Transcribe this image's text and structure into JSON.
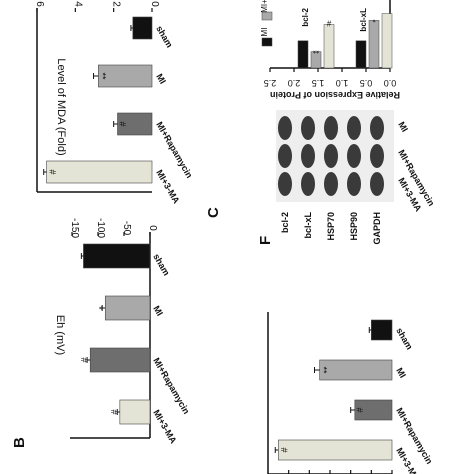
{
  "colors": {
    "sham": "#111111",
    "MI": "#a9a9a9",
    "MI+Rapamycin": "#6e6e6e",
    "MI+3-MA": "#e3e3d6",
    "axis": "#111111"
  },
  "chart_data": [
    {
      "panel": "B",
      "type": "bar",
      "ylabel": "Eh (mV)",
      "ylim": [
        -150,
        0
      ],
      "yticks": [
        "-150",
        "-100",
        "-50",
        "0"
      ],
      "yticks_values": [
        -150,
        -100,
        -50,
        0
      ],
      "categories": [
        "sham",
        "MI",
        "MI+Rapamycin",
        "MI+3-MA"
      ],
      "values": [
        -128,
        -86,
        -115,
        -58
      ],
      "errors": [
        4,
        6,
        6,
        5
      ],
      "annotations": [
        "",
        "*",
        "#",
        "#"
      ]
    },
    {
      "panel": "C",
      "type": "bar",
      "ylabel": "Level of MDA (Fold)",
      "ylim": [
        0,
        6
      ],
      "yticks": [
        "0",
        "2",
        "4",
        "6"
      ],
      "yticks_values": [
        0,
        2,
        4,
        6
      ],
      "categories": [
        "sham",
        "MI",
        "MI+Rapamycin",
        "MI+3-MA"
      ],
      "values": [
        1.0,
        2.8,
        1.8,
        5.5
      ],
      "errors": [
        0.1,
        0.25,
        0.2,
        0.15
      ],
      "annotations": [
        "",
        "**",
        "#",
        "#"
      ]
    },
    {
      "panel": "",
      "type": "bar",
      "categories": [
        "sham",
        "MI",
        "MI+Rapamycin",
        "MI+3-MA"
      ],
      "values": [
        1.0,
        3.5,
        1.8,
        5.5
      ],
      "errors": [
        0.1,
        0.25,
        0.2,
        0.15
      ],
      "annotations": [
        "",
        "**",
        "#",
        "#"
      ]
    },
    {
      "panel": "F",
      "type": "bar",
      "ylabel": "Relative Expression of Protein",
      "ylim": [
        0,
        2.5
      ],
      "yticks": [
        "0.0",
        "0.5",
        "1.0",
        "1.5",
        "2.0",
        "2.5"
      ],
      "yticks_values": [
        0,
        0.5,
        1.0,
        1.5,
        2.0,
        2.5
      ],
      "categories": [
        "bcl-2",
        "bcl-xL"
      ],
      "legend": [
        "MI",
        "MI+"
      ],
      "series": [
        {
          "name": "MI",
          "values": [
            1.0,
            1.0
          ],
          "errors": [
            0.05,
            0.05
          ],
          "annotations": [
            "",
            ""
          ]
        },
        {
          "name": "MI+",
          "values": [
            0.6,
            1.75
          ],
          "errors": [
            0.06,
            0.08
          ],
          "annotations": [
            "**",
            "*"
          ]
        },
        {
          "name": "",
          "values": [
            1.6,
            2.0
          ],
          "errors": [
            0.06,
            0.06
          ],
          "annotations": [
            "#",
            ""
          ]
        }
      ]
    }
  ],
  "panels": {
    "B": {
      "letter": "B"
    },
    "C": {
      "letter": "C"
    },
    "F": {
      "letter": "F",
      "blot_rows": [
        "bcl-2",
        "bcl-xL",
        "HSP70",
        "HSP90",
        "GAPDH"
      ],
      "blot_lanes": [
        "MI",
        "MI+Rapamycin",
        "MI+3-MA"
      ]
    }
  }
}
